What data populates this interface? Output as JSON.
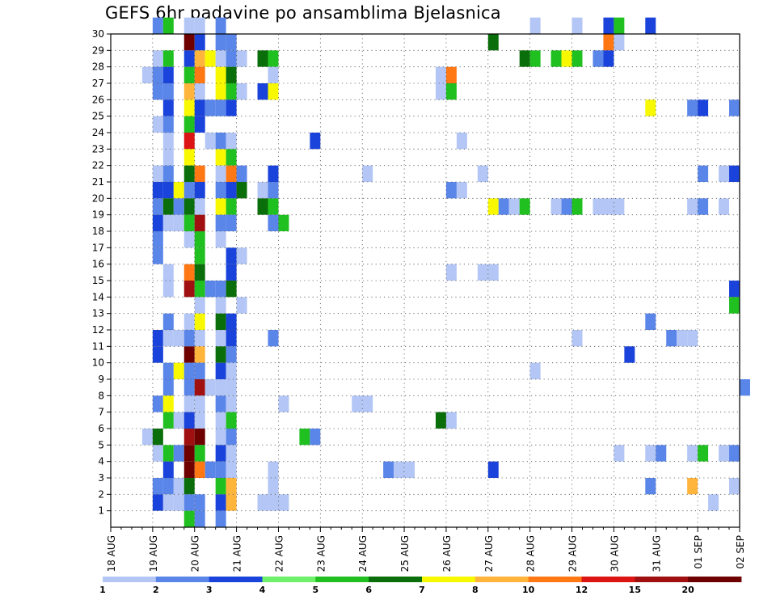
{
  "title": "GEFS 6hr padavine po ansamblima Bjelasnica",
  "chart_data": {
    "type": "heatmap",
    "title": "GEFS 6hr padavine po ansamblima Bjelasnica",
    "xlabel": "",
    "ylabel": "",
    "x_ticks": [
      "18 AUG",
      "19 AUG",
      "20 AUG",
      "21 AUG",
      "22 AUG",
      "23 AUG",
      "24 AUG",
      "25 AUG",
      "26 AUG",
      "27 AUG",
      "28 AUG",
      "29 AUG",
      "30 AUG",
      "31 AUG",
      "01 SEP",
      "02 SEP"
    ],
    "x_range": [
      0,
      60
    ],
    "steps_per_day": 4,
    "y_ticks": [
      1,
      2,
      3,
      4,
      5,
      6,
      7,
      8,
      9,
      10,
      11,
      12,
      13,
      14,
      15,
      16,
      17,
      18,
      19,
      20,
      21,
      22,
      23,
      24,
      25,
      26,
      27,
      28,
      29,
      30
    ],
    "y_range": [
      0,
      30
    ],
    "grid": true,
    "legend_position": "bottom",
    "colorbar": {
      "levels": [
        1,
        2,
        3,
        4,
        5,
        6,
        7,
        8,
        10,
        12,
        15,
        20
      ],
      "colors": [
        "#b3c6f5",
        "#5a86ea",
        "#1a43dc",
        "#6ef06a",
        "#20c020",
        "#0a6e0a",
        "#f8f800",
        "#ffb43c",
        "#ff7814",
        "#dc1414",
        "#a01010",
        "#6e0000"
      ]
    },
    "cells": [
      [
        4,
        30,
        2
      ],
      [
        5,
        30,
        5
      ],
      [
        7,
        30,
        1
      ],
      [
        8,
        30,
        1
      ],
      [
        10,
        30,
        2
      ],
      [
        40,
        30,
        1
      ],
      [
        44,
        30,
        1
      ],
      [
        47,
        30,
        3
      ],
      [
        48,
        30,
        5
      ],
      [
        51,
        30,
        3
      ],
      [
        7,
        29,
        12
      ],
      [
        8,
        29,
        3
      ],
      [
        10,
        29,
        2
      ],
      [
        11,
        29,
        2
      ],
      [
        36,
        29,
        6
      ],
      [
        47,
        29,
        9
      ],
      [
        48,
        29,
        1
      ],
      [
        4,
        28,
        1
      ],
      [
        5,
        28,
        5
      ],
      [
        7,
        28,
        3
      ],
      [
        8,
        28,
        8
      ],
      [
        9,
        28,
        7
      ],
      [
        10,
        28,
        1
      ],
      [
        11,
        28,
        2
      ],
      [
        12,
        28,
        1
      ],
      [
        14,
        28,
        6
      ],
      [
        15,
        28,
        5
      ],
      [
        39,
        28,
        6
      ],
      [
        40,
        28,
        5
      ],
      [
        42,
        28,
        5
      ],
      [
        43,
        28,
        7
      ],
      [
        44,
        28,
        5
      ],
      [
        46,
        28,
        2
      ],
      [
        47,
        28,
        3
      ],
      [
        3,
        27,
        1
      ],
      [
        4,
        27,
        2
      ],
      [
        5,
        27,
        3
      ],
      [
        7,
        27,
        5
      ],
      [
        8,
        27,
        9
      ],
      [
        10,
        27,
        7
      ],
      [
        11,
        27,
        6
      ],
      [
        15,
        27,
        1
      ],
      [
        31,
        27,
        1
      ],
      [
        32,
        27,
        9
      ],
      [
        4,
        26,
        2
      ],
      [
        5,
        26,
        2
      ],
      [
        7,
        26,
        8
      ],
      [
        8,
        26,
        1
      ],
      [
        10,
        26,
        7
      ],
      [
        11,
        26,
        5
      ],
      [
        12,
        26,
        1
      ],
      [
        14,
        26,
        3
      ],
      [
        15,
        26,
        7
      ],
      [
        31,
        26,
        1
      ],
      [
        32,
        26,
        5
      ],
      [
        5,
        25,
        3
      ],
      [
        7,
        25,
        7
      ],
      [
        8,
        25,
        3
      ],
      [
        9,
        25,
        2
      ],
      [
        10,
        25,
        2
      ],
      [
        11,
        25,
        3
      ],
      [
        51,
        25,
        7
      ],
      [
        55,
        25,
        2
      ],
      [
        56,
        25,
        3
      ],
      [
        59,
        25,
        2
      ],
      [
        4,
        24,
        1
      ],
      [
        5,
        24,
        2
      ],
      [
        7,
        24,
        5
      ],
      [
        8,
        24,
        3
      ],
      [
        5,
        23,
        1
      ],
      [
        7,
        23,
        10
      ],
      [
        9,
        23,
        1
      ],
      [
        10,
        23,
        2
      ],
      [
        11,
        23,
        1
      ],
      [
        19,
        23,
        3
      ],
      [
        33,
        23,
        1
      ],
      [
        5,
        22,
        1
      ],
      [
        7,
        22,
        7
      ],
      [
        10,
        22,
        7
      ],
      [
        11,
        22,
        5
      ],
      [
        4,
        21,
        1
      ],
      [
        5,
        21,
        2
      ],
      [
        7,
        21,
        6
      ],
      [
        8,
        21,
        9
      ],
      [
        10,
        21,
        1
      ],
      [
        11,
        21,
        9
      ],
      [
        12,
        21,
        2
      ],
      [
        15,
        21,
        3
      ],
      [
        24,
        21,
        1
      ],
      [
        35,
        21,
        1
      ],
      [
        56,
        21,
        2
      ],
      [
        58,
        21,
        1
      ],
      [
        59,
        21,
        3
      ],
      [
        4,
        20,
        3
      ],
      [
        5,
        20,
        3
      ],
      [
        6,
        20,
        7
      ],
      [
        7,
        20,
        2
      ],
      [
        8,
        20,
        3
      ],
      [
        10,
        20,
        2
      ],
      [
        11,
        20,
        3
      ],
      [
        12,
        20,
        6
      ],
      [
        14,
        20,
        1
      ],
      [
        15,
        20,
        2
      ],
      [
        32,
        20,
        2
      ],
      [
        33,
        20,
        1
      ],
      [
        4,
        19,
        2
      ],
      [
        5,
        19,
        6
      ],
      [
        6,
        19,
        2
      ],
      [
        7,
        19,
        6
      ],
      [
        8,
        19,
        1
      ],
      [
        10,
        19,
        7
      ],
      [
        11,
        19,
        5
      ],
      [
        14,
        19,
        6
      ],
      [
        15,
        19,
        5
      ],
      [
        36,
        19,
        7
      ],
      [
        37,
        19,
        2
      ],
      [
        38,
        19,
        1
      ],
      [
        39,
        19,
        5
      ],
      [
        42,
        19,
        1
      ],
      [
        43,
        19,
        2
      ],
      [
        44,
        19,
        5
      ],
      [
        46,
        19,
        1
      ],
      [
        47,
        19,
        1
      ],
      [
        48,
        19,
        1
      ],
      [
        55,
        19,
        1
      ],
      [
        56,
        19,
        2
      ],
      [
        58,
        19,
        1
      ],
      [
        4,
        18,
        3
      ],
      [
        5,
        18,
        1
      ],
      [
        6,
        18,
        1
      ],
      [
        7,
        18,
        5
      ],
      [
        8,
        18,
        11
      ],
      [
        10,
        18,
        2
      ],
      [
        11,
        18,
        2
      ],
      [
        15,
        18,
        2
      ],
      [
        16,
        18,
        5
      ],
      [
        4,
        17,
        2
      ],
      [
        7,
        17,
        1
      ],
      [
        8,
        17,
        5
      ],
      [
        10,
        17,
        1
      ],
      [
        4,
        16,
        2
      ],
      [
        8,
        16,
        5
      ],
      [
        11,
        16,
        3
      ],
      [
        12,
        16,
        1
      ],
      [
        5,
        15,
        1
      ],
      [
        7,
        15,
        9
      ],
      [
        8,
        15,
        6
      ],
      [
        11,
        15,
        3
      ],
      [
        32,
        15,
        1
      ],
      [
        35,
        15,
        1
      ],
      [
        36,
        15,
        1
      ],
      [
        5,
        14,
        1
      ],
      [
        7,
        14,
        11
      ],
      [
        8,
        14,
        5
      ],
      [
        9,
        14,
        2
      ],
      [
        10,
        14,
        2
      ],
      [
        11,
        14,
        6
      ],
      [
        59,
        14,
        3
      ],
      [
        8,
        13,
        1
      ],
      [
        10,
        13,
        1
      ],
      [
        12,
        13,
        1
      ],
      [
        59,
        13,
        5
      ],
      [
        5,
        12,
        2
      ],
      [
        7,
        12,
        1
      ],
      [
        8,
        12,
        7
      ],
      [
        10,
        12,
        6
      ],
      [
        11,
        12,
        3
      ],
      [
        51,
        12,
        2
      ],
      [
        4,
        11,
        3
      ],
      [
        5,
        11,
        1
      ],
      [
        6,
        11,
        1
      ],
      [
        7,
        11,
        2
      ],
      [
        8,
        11,
        1
      ],
      [
        10,
        11,
        1
      ],
      [
        11,
        11,
        3
      ],
      [
        15,
        11,
        2
      ],
      [
        44,
        11,
        1
      ],
      [
        53,
        11,
        2
      ],
      [
        54,
        11,
        1
      ],
      [
        55,
        11,
        1
      ],
      [
        4,
        10,
        3
      ],
      [
        7,
        10,
        12
      ],
      [
        8,
        10,
        8
      ],
      [
        10,
        10,
        6
      ],
      [
        11,
        10,
        2
      ],
      [
        49,
        10,
        3
      ],
      [
        5,
        9,
        2
      ],
      [
        6,
        9,
        7
      ],
      [
        7,
        9,
        2
      ],
      [
        8,
        9,
        2
      ],
      [
        10,
        9,
        3
      ],
      [
        11,
        9,
        1
      ],
      [
        40,
        9,
        1
      ],
      [
        5,
        8,
        2
      ],
      [
        7,
        8,
        2
      ],
      [
        8,
        8,
        11
      ],
      [
        9,
        8,
        1
      ],
      [
        10,
        8,
        1
      ],
      [
        11,
        8,
        1
      ],
      [
        60,
        8,
        2
      ],
      [
        4,
        7,
        2
      ],
      [
        5,
        7,
        7
      ],
      [
        7,
        7,
        1
      ],
      [
        8,
        7,
        1
      ],
      [
        10,
        7,
        2
      ],
      [
        11,
        7,
        1
      ],
      [
        16,
        7,
        1
      ],
      [
        23,
        7,
        1
      ],
      [
        24,
        7,
        1
      ],
      [
        5,
        6,
        5
      ],
      [
        6,
        6,
        1
      ],
      [
        7,
        6,
        3
      ],
      [
        8,
        6,
        1
      ],
      [
        10,
        6,
        1
      ],
      [
        11,
        6,
        5
      ],
      [
        31,
        6,
        6
      ],
      [
        32,
        6,
        1
      ],
      [
        3,
        5,
        1
      ],
      [
        4,
        5,
        6
      ],
      [
        7,
        5,
        11
      ],
      [
        8,
        5,
        12
      ],
      [
        10,
        5,
        1
      ],
      [
        11,
        5,
        2
      ],
      [
        18,
        5,
        5
      ],
      [
        19,
        5,
        2
      ],
      [
        4,
        4,
        1
      ],
      [
        5,
        4,
        5
      ],
      [
        6,
        4,
        2
      ],
      [
        7,
        4,
        12
      ],
      [
        8,
        4,
        5
      ],
      [
        10,
        4,
        3
      ],
      [
        11,
        4,
        1
      ],
      [
        48,
        4,
        1
      ],
      [
        51,
        4,
        1
      ],
      [
        52,
        4,
        2
      ],
      [
        55,
        4,
        1
      ],
      [
        56,
        4,
        5
      ],
      [
        58,
        4,
        1
      ],
      [
        59,
        4,
        2
      ],
      [
        5,
        3,
        3
      ],
      [
        7,
        3,
        12
      ],
      [
        8,
        3,
        9
      ],
      [
        9,
        3,
        2
      ],
      [
        10,
        3,
        2
      ],
      [
        11,
        3,
        1
      ],
      [
        15,
        3,
        1
      ],
      [
        26,
        3,
        2
      ],
      [
        27,
        3,
        1
      ],
      [
        28,
        3,
        1
      ],
      [
        36,
        3,
        3
      ],
      [
        4,
        2,
        2
      ],
      [
        5,
        2,
        2
      ],
      [
        6,
        2,
        1
      ],
      [
        7,
        2,
        6
      ],
      [
        10,
        2,
        5
      ],
      [
        11,
        2,
        8
      ],
      [
        15,
        2,
        1
      ],
      [
        51,
        2,
        2
      ],
      [
        55,
        2,
        8
      ],
      [
        59,
        2,
        1
      ],
      [
        4,
        1,
        3
      ],
      [
        5,
        1,
        1
      ],
      [
        6,
        1,
        1
      ],
      [
        7,
        1,
        2
      ],
      [
        8,
        1,
        2
      ],
      [
        10,
        1,
        3
      ],
      [
        11,
        1,
        8
      ],
      [
        14,
        1,
        1
      ],
      [
        15,
        1,
        1
      ],
      [
        16,
        1,
        1
      ],
      [
        57,
        1,
        1
      ],
      [
        7,
        0,
        5
      ],
      [
        8,
        0,
        2
      ],
      [
        10,
        0,
        2
      ]
    ]
  }
}
